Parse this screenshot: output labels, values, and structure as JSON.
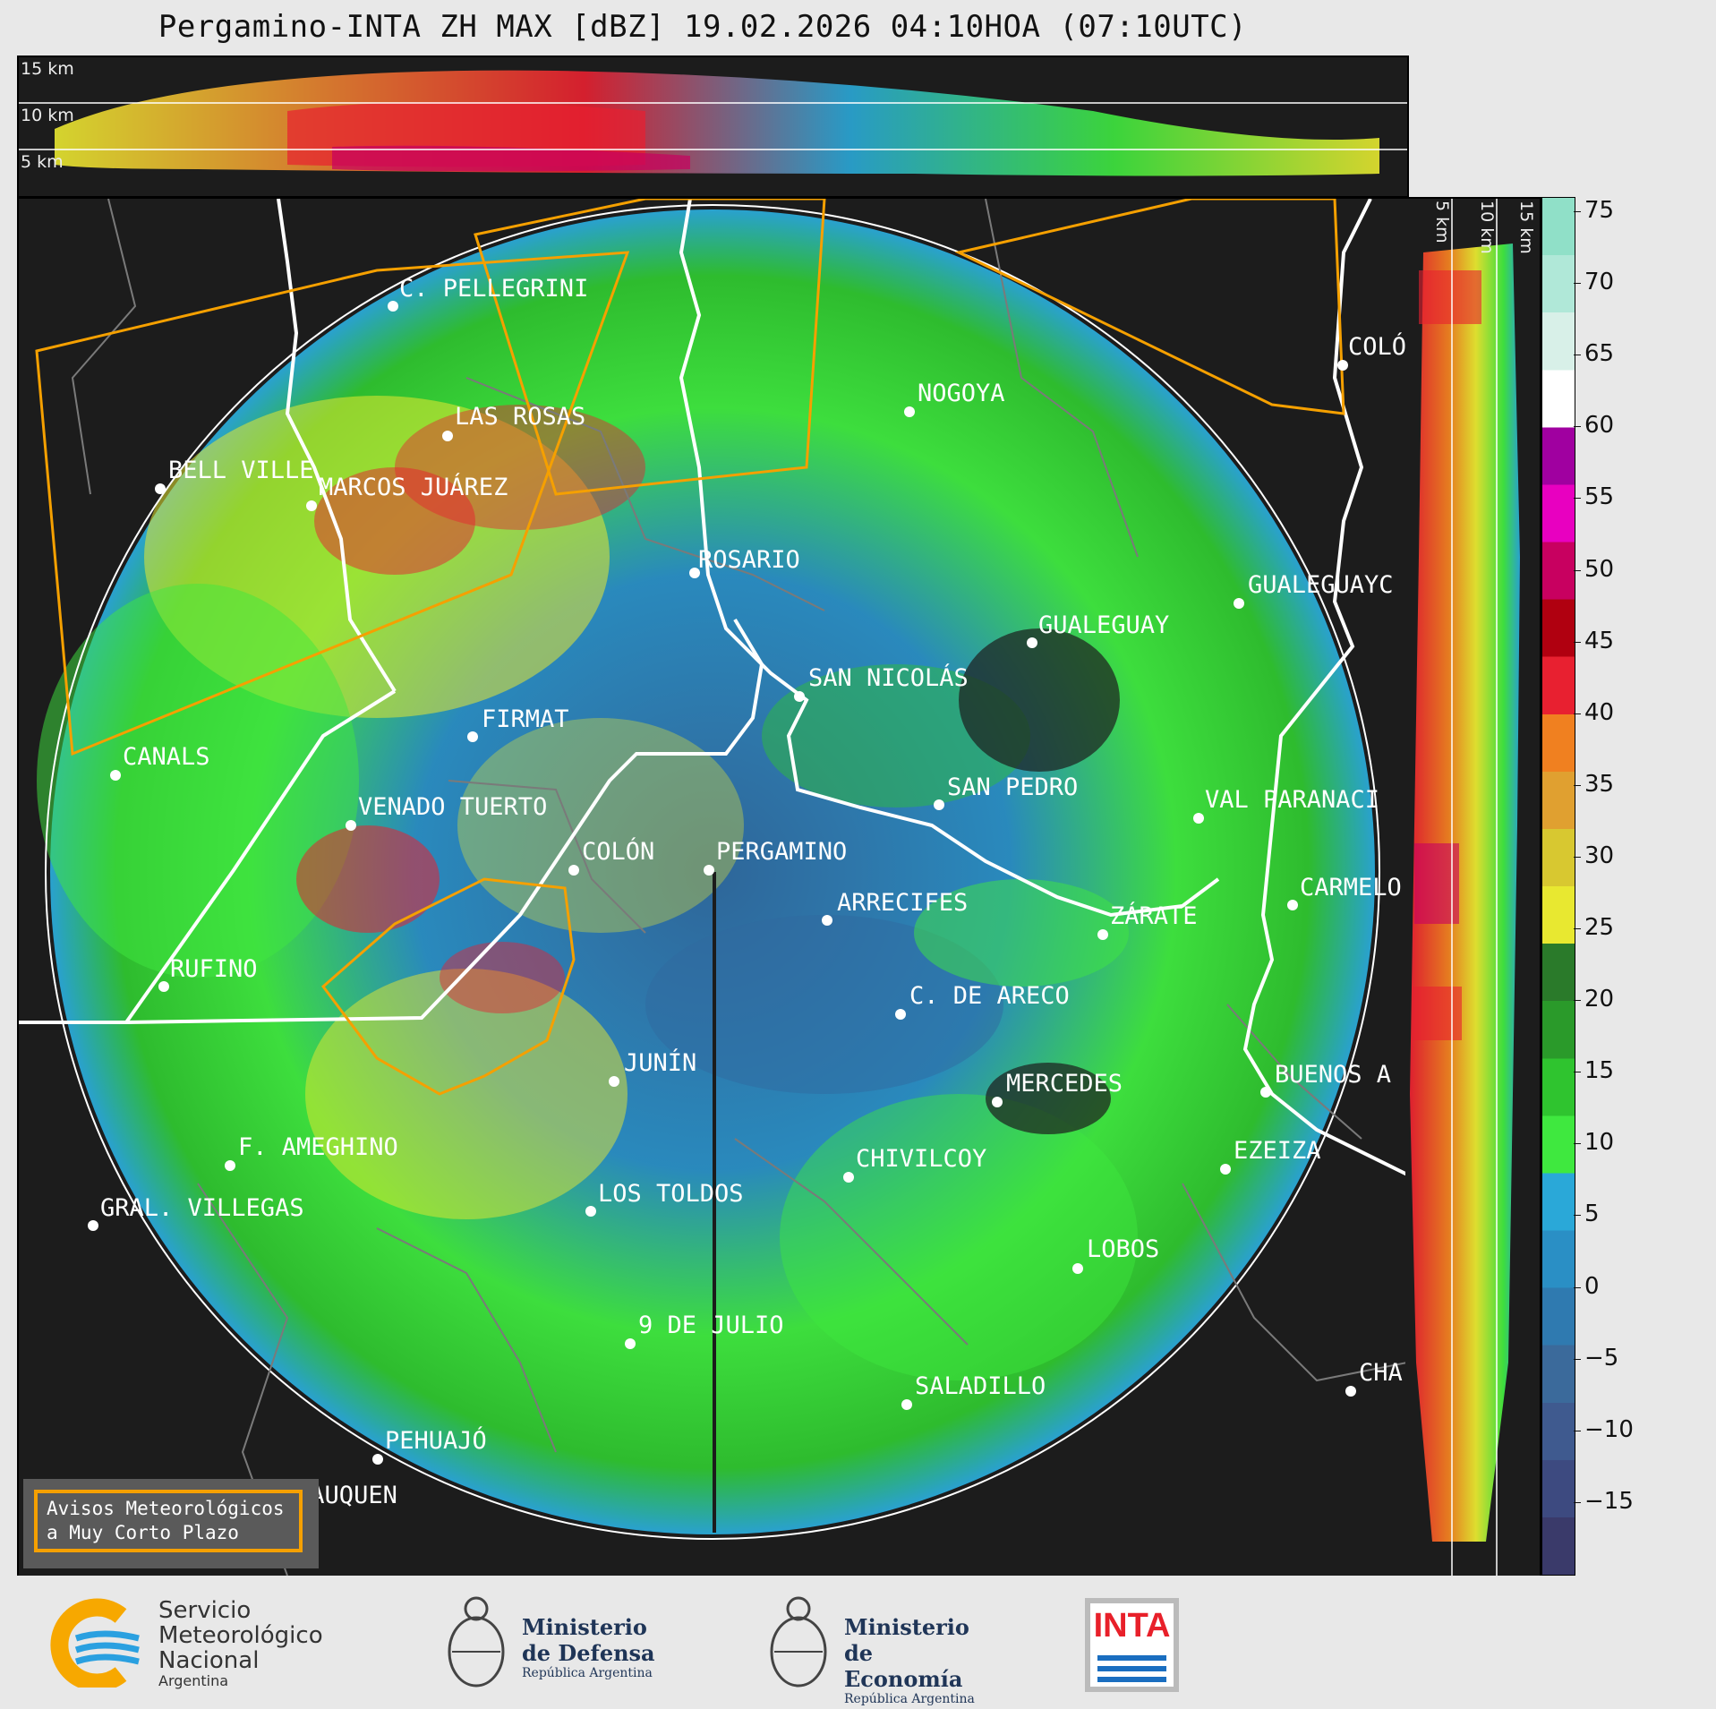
{
  "title": "Pergamino-INTA ZH MAX [dBZ] 19.02.2026 04:10HOA (07:10UTC)",
  "height_labels_top": [
    "15 km",
    "10 km",
    "5 km"
  ],
  "height_labels_side": [
    "5 km",
    "10 km",
    "15 km"
  ],
  "colorbar": {
    "ticks": [
      "75",
      "70",
      "65",
      "60",
      "55",
      "50",
      "45",
      "40",
      "35",
      "30",
      "25",
      "20",
      "15",
      "10",
      "5",
      "0",
      "−5",
      "−10",
      "−15"
    ],
    "min": -20,
    "max": 76,
    "colors": [
      "#3a3a6a",
      "#3d4a80",
      "#3f5a8f",
      "#3b6a9b",
      "#2f7ab0",
      "#2a8fc5",
      "#2aa8d8",
      "#3fe83f",
      "#2fc42f",
      "#2a9a2a",
      "#2a7a2a",
      "#e8e830",
      "#d8c830",
      "#e0a030",
      "#f08020",
      "#e82030",
      "#b00010",
      "#c80060",
      "#e800c0",
      "#a000a0",
      "#ffffff",
      "#d8f0e8",
      "#b0e8d8",
      "#90e0c8"
    ]
  },
  "cities": [
    {
      "name": "C. PELLEGRINI"
    },
    {
      "name": "LAS ROSAS"
    },
    {
      "name": "BELL VILLE"
    },
    {
      "name": "MARCOS JUÁREZ"
    },
    {
      "name": "NOGOYA"
    },
    {
      "name": "COLÓ"
    },
    {
      "name": "ROSARIO"
    },
    {
      "name": "GUALEGUAYC"
    },
    {
      "name": "GUALEGUAY"
    },
    {
      "name": "SAN NICOLÁS"
    },
    {
      "name": "FIRMAT"
    },
    {
      "name": "CANALS"
    },
    {
      "name": "SAN PEDRO"
    },
    {
      "name": "VAL PARANACI"
    },
    {
      "name": "VENADO TUERTO"
    },
    {
      "name": "COLÓN"
    },
    {
      "name": "PERGAMINO"
    },
    {
      "name": "CARMELO"
    },
    {
      "name": "ARRECIFES"
    },
    {
      "name": "ZÁRATE"
    },
    {
      "name": "RUFINO"
    },
    {
      "name": "C. DE ARECO"
    },
    {
      "name": "JUNÍN"
    },
    {
      "name": "MERCEDES"
    },
    {
      "name": "BUENOS A"
    },
    {
      "name": "F. AMEGHINO"
    },
    {
      "name": "CHIVILCOY"
    },
    {
      "name": "EZEIZA"
    },
    {
      "name": "GRAL. VILLEGAS"
    },
    {
      "name": "LOS TOLDOS"
    },
    {
      "name": "LOBOS"
    },
    {
      "name": "9 DE JULIO"
    },
    {
      "name": "CHA"
    },
    {
      "name": "SALADILLO"
    },
    {
      "name": "PEHUAJÓ"
    },
    {
      "name": "TRENQUE LAUQUEN"
    }
  ],
  "avisos": {
    "line1": "Avisos Meteorológicos",
    "line2": "a Muy Corto Plazo"
  },
  "logos": {
    "smn": {
      "line1": "Servicio",
      "line2": "Meteorológico",
      "line3": "Nacional",
      "line4": "Argentina"
    },
    "defensa": {
      "line1": "Ministerio",
      "line2": "de Defensa",
      "line3": "República Argentina"
    },
    "economia": {
      "line1": "Ministerio",
      "line2": "de Economía",
      "line3": "República Argentina"
    },
    "inta": {
      "text": "INTA"
    }
  }
}
